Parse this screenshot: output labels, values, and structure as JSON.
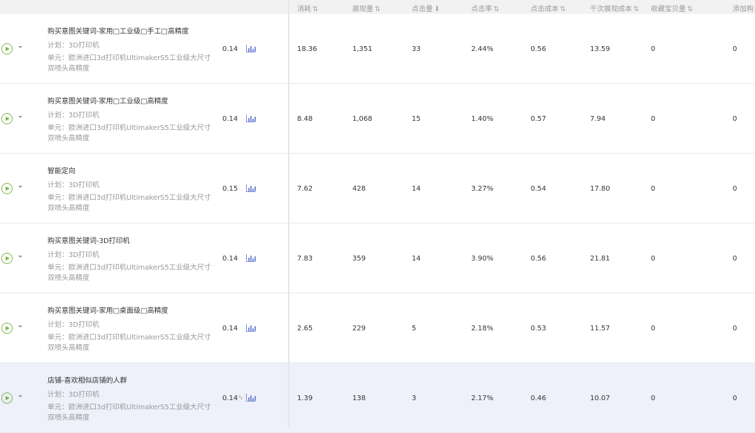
{
  "columns": [
    {
      "label": "消耗",
      "sort": "⇅"
    },
    {
      "label": "展现量",
      "sort": "⇅"
    },
    {
      "label": "点击量",
      "sort": "⬇"
    },
    {
      "label": "点击率",
      "sort": "⇅"
    },
    {
      "label": "点击成本",
      "sort": "⇅"
    },
    {
      "label": "千次展现成本",
      "sort": "⇅"
    },
    {
      "label": "收藏宝贝量",
      "sort": "⇅"
    },
    {
      "label": "添加购",
      "sort": ""
    }
  ],
  "colors": {
    "play": "#7ab648",
    "chart": "#7a8ed6",
    "highlight_row": "#eef0fa"
  },
  "rows": [
    {
      "title": "购买意图关键词-家用□工业级□手工□高精度",
      "plan": "计划：3D打印机",
      "unit1": "单元：欧洲进口3d打印机UltimakerS5工业级大尺寸",
      "unit2": "双喷头高精度",
      "bid": "0.14",
      "values": [
        "18.36",
        "1,351",
        "33",
        "2.44%",
        "0.56",
        "13.59",
        "0",
        "0"
      ]
    },
    {
      "title": "购买意图关键词-家用□工业级□高精度",
      "plan": "计划：3D打印机",
      "unit1": "单元：欧洲进口3d打印机UltimakerS5工业级大尺寸",
      "unit2": "双喷头高精度",
      "bid": "0.14",
      "values": [
        "8.48",
        "1,068",
        "15",
        "1.40%",
        "0.57",
        "7.94",
        "0",
        "0"
      ]
    },
    {
      "title": "智能定向",
      "plan": "计划：3D打印机",
      "unit1": "单元：欧洲进口3d打印机UltimakerS5工业级大尺寸",
      "unit2": "双喷头高精度",
      "bid": "0.15",
      "values": [
        "7.62",
        "428",
        "14",
        "3.27%",
        "0.54",
        "17.80",
        "0",
        "0"
      ]
    },
    {
      "title": "购买意图关键词-3D打印机",
      "plan": "计划：3D打印机",
      "unit1": "单元：欧洲进口3d打印机UltimakerS5工业级大尺寸",
      "unit2": "双喷头高精度",
      "bid": "0.14",
      "values": [
        "7.83",
        "359",
        "14",
        "3.90%",
        "0.56",
        "21.81",
        "0",
        "0"
      ]
    },
    {
      "title": "购买意图关键词-家用□桌面级□高精度",
      "plan": "计划：3D打印机",
      "unit1": "单元：欧洲进口3d打印机UltimakerS5工业级大尺寸",
      "unit2": "双喷头高精度",
      "bid": "0.14",
      "values": [
        "2.65",
        "229",
        "5",
        "2.18%",
        "0.53",
        "11.57",
        "0",
        "0"
      ]
    },
    {
      "title": "店铺-喜欢相似店铺的人群",
      "plan": "计划：3D打印机",
      "unit1": "单元：欧洲进口3d打印机UltimakerS5工业级大尺寸",
      "unit2": "双喷头高精度",
      "bid": "0.14",
      "values": [
        "1.39",
        "138",
        "3",
        "2.17%",
        "0.46",
        "10.07",
        "0",
        "0"
      ]
    }
  ]
}
